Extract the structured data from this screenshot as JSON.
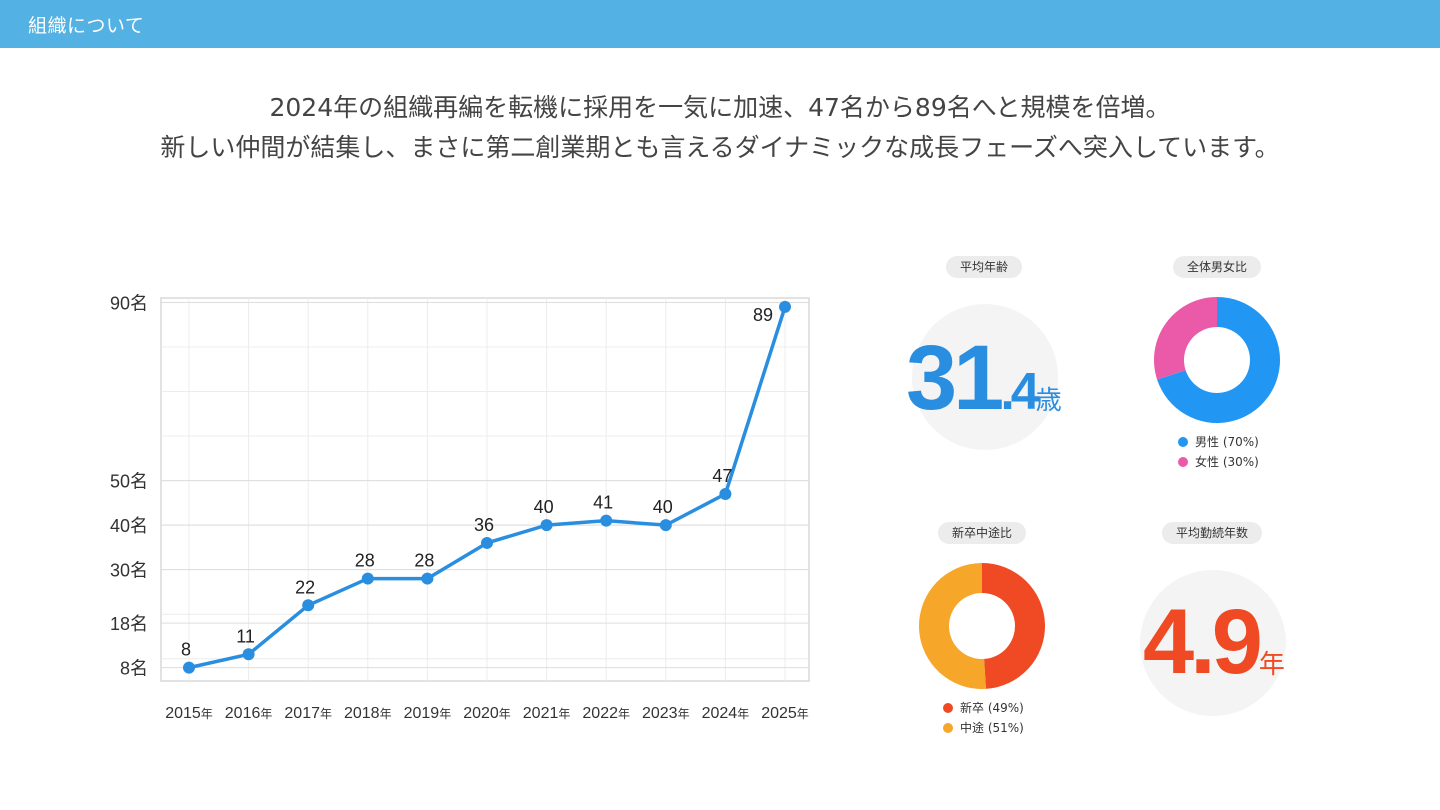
{
  "header": {
    "title": "組織について"
  },
  "lead": {
    "line1": "2024年の組織再編を転機に採用を一気に加速、47名から89名へと規模を倍増。",
    "line2": "新しい仲間が結集し、まさに第二創業期とも言えるダイナミックな成長フェーズへ突入しています。"
  },
  "colors": {
    "header": "#53b1e3",
    "line": "#2a8ee0",
    "male": "#2196f3",
    "female": "#ea5aa8",
    "new_grad": "#ef4a23",
    "mid_career": "#f6a629",
    "age_text": "#2a8ee0",
    "tenure_text": "#ef4a23"
  },
  "chart_data": {
    "type": "line",
    "x": [
      "2015",
      "2016",
      "2017",
      "2018",
      "2019",
      "2020",
      "2021",
      "2022",
      "2023",
      "2024",
      "2025"
    ],
    "x_unit": "年",
    "series": [
      {
        "values": [
          8,
          11,
          22,
          28,
          28,
          36,
          40,
          41,
          40,
          47,
          89
        ]
      }
    ],
    "point_labels": [
      "8",
      "11",
      "22",
      "28",
      "28",
      "36",
      "40",
      "41",
      "40",
      "47",
      "89"
    ],
    "y_ticks": [
      {
        "value": 8,
        "label": "8名"
      },
      {
        "value": 18,
        "label": "18名"
      },
      {
        "value": 30,
        "label": "30名"
      },
      {
        "value": 40,
        "label": "40名"
      },
      {
        "value": 50,
        "label": "50名"
      },
      {
        "value": 90,
        "label": "90名"
      }
    ],
    "ylim": [
      5,
      91
    ],
    "grid": true
  },
  "stats": {
    "age": {
      "label": "平均年齢",
      "int": "31",
      "dec": ".4",
      "unit": "歳"
    },
    "gender": {
      "label": "全体男女比",
      "segments": [
        {
          "name": "男性 (70%)",
          "value": 70,
          "color": "#2196f3"
        },
        {
          "name": "女性 (30%)",
          "value": 30,
          "color": "#ea5aa8"
        }
      ]
    },
    "hire": {
      "label": "新卒中途比",
      "segments": [
        {
          "name": "新卒 (49%)",
          "value": 49,
          "color": "#ef4a23"
        },
        {
          "name": "中途 (51%)",
          "value": 51,
          "color": "#f6a629"
        }
      ]
    },
    "tenure": {
      "label": "平均勤続年数",
      "num": "4.9",
      "unit": "年"
    }
  }
}
